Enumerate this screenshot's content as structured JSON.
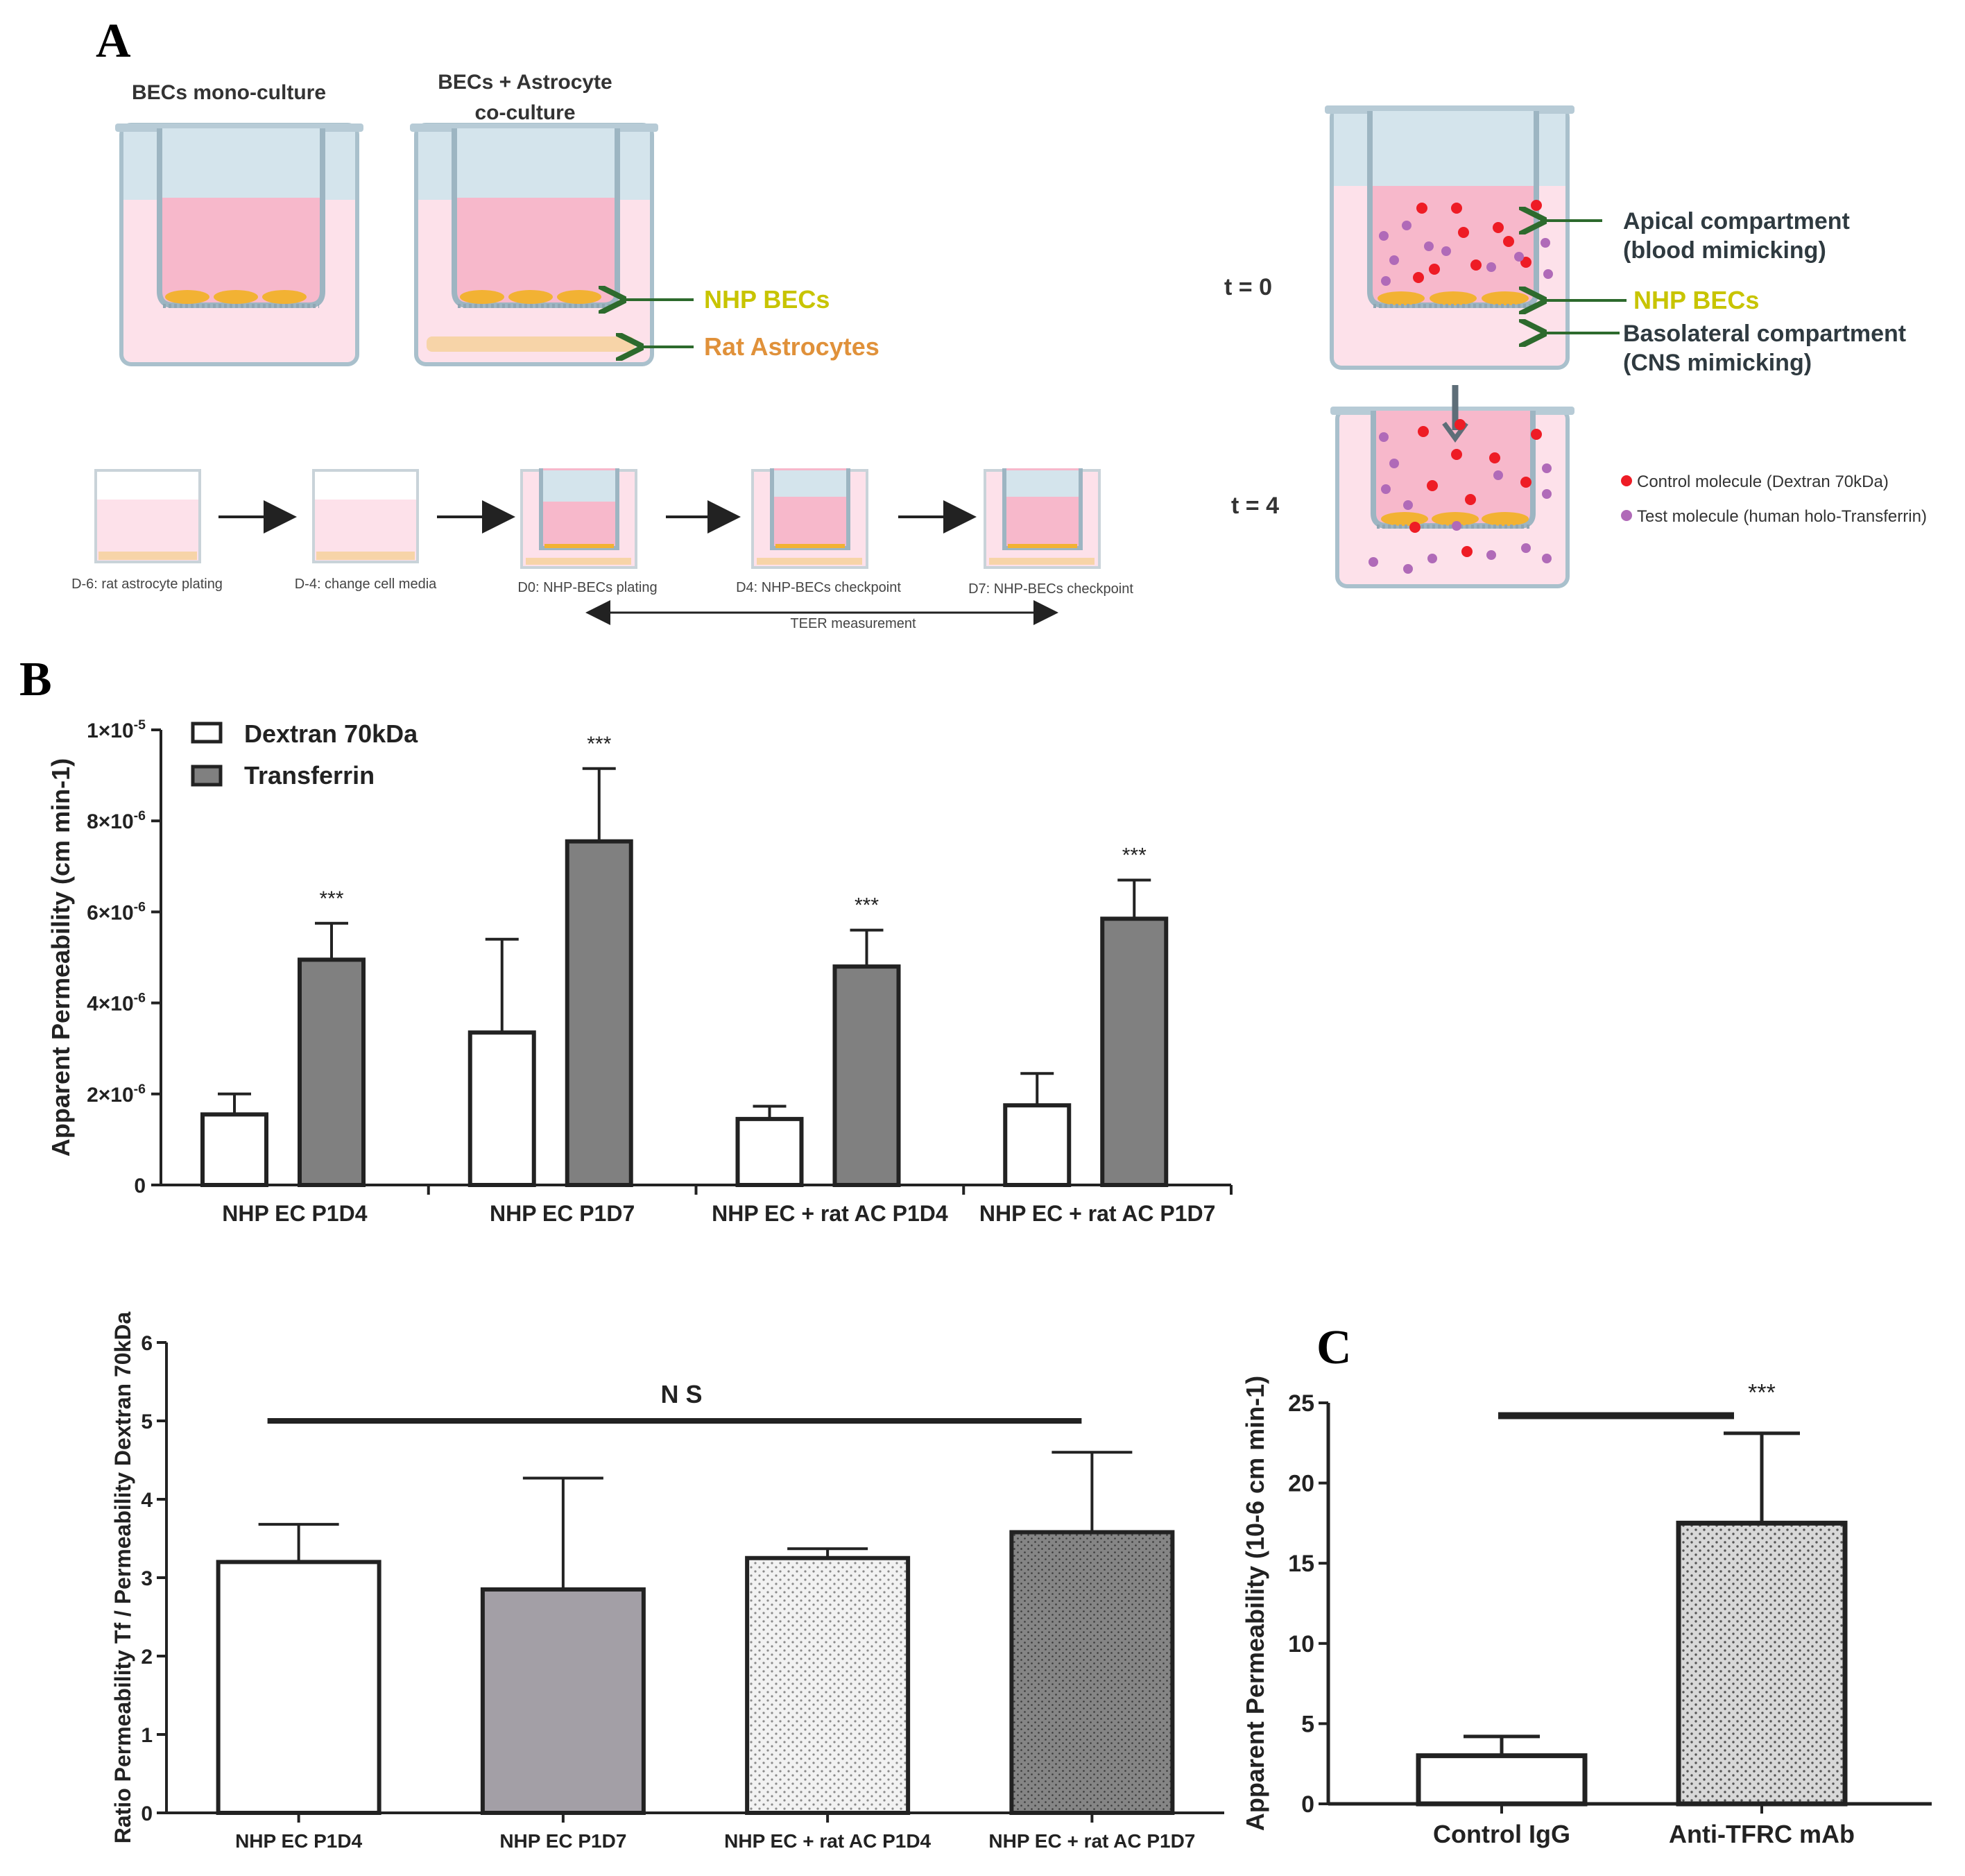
{
  "panels": {
    "a": "A",
    "b": "B",
    "c": "C"
  },
  "schematic": {
    "mono_title": "BECs mono-culture",
    "co_title_line1": "BECs + Astrocyte",
    "co_title_line2": "co-culture",
    "nhp_becs": "NHP BECs",
    "rat_astrocytes": "Rat Astrocytes",
    "t0": "t = 0",
    "t4": "t = 4",
    "apical_line1": "Apical compartment",
    "apical_line2": "(blood mimicking)",
    "basolateral_line1": "Basolateral compartment",
    "basolateral_line2": "(CNS mimicking)",
    "legend_control": "Control molecule (Dextran 70kDa)",
    "legend_test": "Test molecule  (human holo-Transferrin)",
    "timeline": [
      "D-6: rat astrocyte plating",
      "D-4: change cell media",
      "D0: NHP-BECs plating",
      "D4: NHP-BECs checkpoint",
      "D7: NHP-BECs checkpoint"
    ],
    "teer": "TEER measurement"
  },
  "chart_data": [
    {
      "type": "bar",
      "title": "",
      "ylabel": "Apparent Permeability (cm min-1)",
      "ylim": [
        0,
        10
      ],
      "y_ticks": [
        {
          "value": 0,
          "label": "0"
        },
        {
          "value": 2,
          "label": "2×10-6"
        },
        {
          "value": 4,
          "label": "4×10-6"
        },
        {
          "value": 6,
          "label": "6×10-6"
        },
        {
          "value": 8,
          "label": "8×10-6"
        },
        {
          "value": 10,
          "label": "1×10-5"
        }
      ],
      "categories": [
        "NHP EC P1D4",
        "NHP EC P1D7",
        "NHP EC + rat AC P1D4",
        "NHP EC + rat AC P1D7"
      ],
      "series": [
        {
          "name": "Dextran 70kDa",
          "color": "#ffffff",
          "values": [
            1.55,
            3.35,
            1.45,
            1.75
          ],
          "errors": [
            0.45,
            2.05,
            0.28,
            0.7
          ]
        },
        {
          "name": "Transferrin",
          "color": "#808080",
          "values": [
            4.95,
            7.55,
            4.8,
            5.85
          ],
          "errors": [
            0.8,
            1.6,
            0.8,
            0.85
          ]
        }
      ],
      "annotations": [
        "***",
        "***",
        "***",
        "***"
      ],
      "legend": "top-left"
    },
    {
      "type": "bar",
      "title": "",
      "ylabel": "Ratio Permeability Tf / Permeability Dextran 70kDa",
      "ylim": [
        0,
        6
      ],
      "y_ticks": [
        {
          "value": 0,
          "label": "0"
        },
        {
          "value": 1,
          "label": "1"
        },
        {
          "value": 2,
          "label": "2"
        },
        {
          "value": 3,
          "label": "3"
        },
        {
          "value": 4,
          "label": "4"
        },
        {
          "value": 5,
          "label": "5"
        },
        {
          "value": 6,
          "label": "6"
        }
      ],
      "categories": [
        "NHP EC P1D4",
        "NHP EC P1D7",
        "NHP EC + rat AC P1D4",
        "NHP EC + rat AC P1D7"
      ],
      "values": [
        3.2,
        2.85,
        3.25,
        3.58
      ],
      "errors": [
        0.48,
        1.42,
        0.12,
        1.02
      ],
      "colors": [
        "#ffffff",
        "#a39fa6",
        "#f2f2f2",
        "#858585"
      ],
      "significance": "N S"
    },
    {
      "type": "bar",
      "title": "",
      "ylabel": "Apparent Permeability (10-6 cm min-1)",
      "ylim": [
        0,
        25
      ],
      "y_ticks": [
        {
          "value": 0,
          "label": "0"
        },
        {
          "value": 5,
          "label": "5"
        },
        {
          "value": 10,
          "label": "10"
        },
        {
          "value": 15,
          "label": "15"
        },
        {
          "value": 20,
          "label": "20"
        },
        {
          "value": 25,
          "label": "25"
        }
      ],
      "categories": [
        "Control IgG",
        "Anti-TFRC mAb"
      ],
      "values": [
        3.0,
        17.5
      ],
      "errors": [
        1.2,
        5.6
      ],
      "colors": [
        "#ffffff",
        "#d3d3d3"
      ],
      "significance": "***"
    }
  ]
}
